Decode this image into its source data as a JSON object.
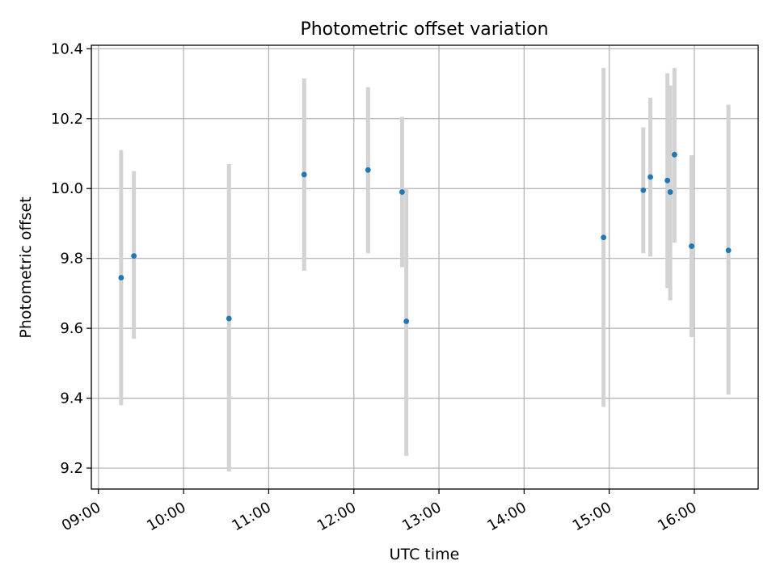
{
  "chart_data": {
    "type": "scatter",
    "title": "Photometric offset variation",
    "xlabel": "UTC time",
    "ylabel": "Photometric offset",
    "x_tick_labels": [
      "09:00",
      "10:00",
      "11:00",
      "12:00",
      "13:00",
      "14:00",
      "15:00",
      "16:00"
    ],
    "y_tick_labels": [
      "9.2",
      "9.4",
      "9.6",
      "9.8",
      "10.0",
      "10.2",
      "10.4"
    ],
    "xlim": [
      "08:55",
      "16:45"
    ],
    "ylim": [
      9.14,
      10.41
    ],
    "grid": true,
    "error_bars": true,
    "series": [
      {
        "points": [
          {
            "x": "09:16",
            "y": 9.745,
            "y_low": 9.38,
            "y_high": 10.11
          },
          {
            "x": "09:25",
            "y": 9.807,
            "y_low": 9.57,
            "y_high": 10.05
          },
          {
            "x": "10:32",
            "y": 9.628,
            "y_low": 9.19,
            "y_high": 10.07
          },
          {
            "x": "11:25",
            "y": 10.04,
            "y_low": 9.765,
            "y_high": 10.315
          },
          {
            "x": "12:10",
            "y": 10.053,
            "y_low": 9.815,
            "y_high": 10.29
          },
          {
            "x": "12:34",
            "y": 9.99,
            "y_low": 9.775,
            "y_high": 10.205
          },
          {
            "x": "12:37",
            "y": 9.62,
            "y_low": 9.235,
            "y_high": 10.0
          },
          {
            "x": "14:56",
            "y": 9.86,
            "y_low": 9.375,
            "y_high": 10.345
          },
          {
            "x": "15:24",
            "y": 9.995,
            "y_low": 9.815,
            "y_high": 10.175
          },
          {
            "x": "15:29",
            "y": 10.033,
            "y_low": 9.805,
            "y_high": 10.26
          },
          {
            "x": "15:41",
            "y": 10.023,
            "y_low": 9.715,
            "y_high": 10.33
          },
          {
            "x": "15:43",
            "y": 9.99,
            "y_low": 9.68,
            "y_high": 10.295
          },
          {
            "x": "15:46",
            "y": 10.097,
            "y_low": 9.845,
            "y_high": 10.345
          },
          {
            "x": "15:58",
            "y": 9.835,
            "y_low": 9.575,
            "y_high": 10.095
          },
          {
            "x": "16:24",
            "y": 9.823,
            "y_low": 9.41,
            "y_high": 10.24
          }
        ]
      }
    ],
    "colors": {
      "point": "#1f77b4",
      "error_bar": "#d3d3d3"
    }
  }
}
